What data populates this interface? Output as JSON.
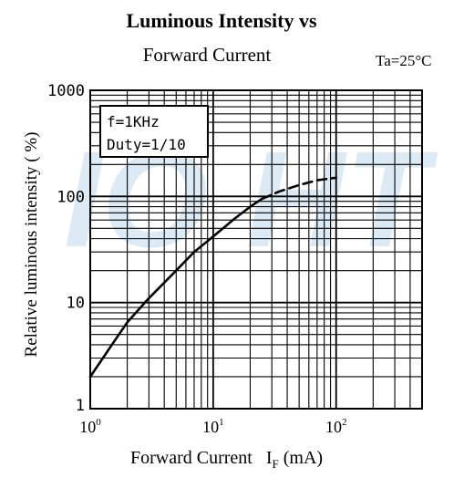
{
  "chart_data": {
    "type": "line",
    "title_line1": "Luminous Intensity vs",
    "title_line2": "Forward Current",
    "condition": "Ta=25°C",
    "xlabel": "Forward Current   I",
    "xlabel_subscript": "F",
    "xlabel_unit": " (mA)",
    "ylabel": "Relative luminous intensity ( %)",
    "xscale": "log",
    "yscale": "log",
    "xlim": [
      1,
      500
    ],
    "ylim": [
      1,
      1000
    ],
    "grid": true,
    "x_tick_labels": [
      {
        "value": 1,
        "base": "10",
        "exp": "0"
      },
      {
        "value": 10,
        "base": "10",
        "exp": "1"
      },
      {
        "value": 100,
        "base": "10",
        "exp": "2"
      }
    ],
    "y_tick_labels": [
      {
        "value": 1,
        "label": "1"
      },
      {
        "value": 10,
        "label": "10"
      },
      {
        "value": 100,
        "label": "100"
      },
      {
        "value": 1000,
        "label": "1000"
      }
    ],
    "legend_box": [
      "f=1KHz",
      "Duty=1/10"
    ],
    "series": [
      {
        "style": "solid",
        "x": [
          1,
          1.5,
          2,
          3,
          5,
          7,
          10,
          15,
          20,
          25
        ],
        "y": [
          2,
          4,
          6.5,
          11,
          20,
          30,
          42,
          62,
          80,
          95
        ]
      },
      {
        "style": "dashed",
        "x": [
          25,
          35,
          50,
          70,
          100
        ],
        "y": [
          95,
          112,
          128,
          142,
          150
        ]
      }
    ],
    "watermark_text": "IO HT",
    "watermark_color": "#cfe3f1"
  }
}
